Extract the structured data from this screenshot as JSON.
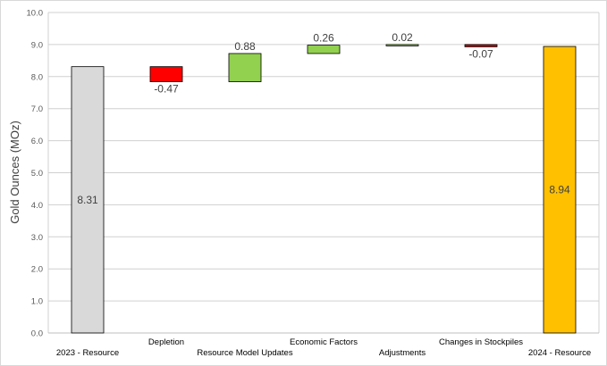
{
  "chart_data": {
    "type": "bar",
    "subtype": "waterfall",
    "ylabel": "Gold Ounces (MOz)",
    "xlabel": "",
    "ylim": [
      0,
      10
    ],
    "yticks": [
      "0.0",
      "1.0",
      "2.0",
      "3.0",
      "4.0",
      "5.0",
      "6.0",
      "7.0",
      "8.0",
      "9.0",
      "10.0"
    ],
    "grid": true,
    "categories": [
      "2023 - Resource",
      "Depletion",
      "Resource Model Updates",
      "Economic Factors",
      "Adjustments",
      "Changes in Stockpiles",
      "2024 - Resource"
    ],
    "values": [
      8.31,
      -0.47,
      0.88,
      0.26,
      0.02,
      -0.07,
      8.94
    ],
    "labels": [
      "8.31",
      "-0.47",
      "0.88",
      "0.26",
      "0.02",
      "-0.07",
      "8.94"
    ],
    "kinds": [
      "total",
      "step",
      "step",
      "step",
      "step",
      "step",
      "total"
    ],
    "colors": [
      "#d9d9d9",
      "#ff0000",
      "#92d050",
      "#92d050",
      "#92d050",
      "#c00000",
      "#ffc000"
    ]
  }
}
